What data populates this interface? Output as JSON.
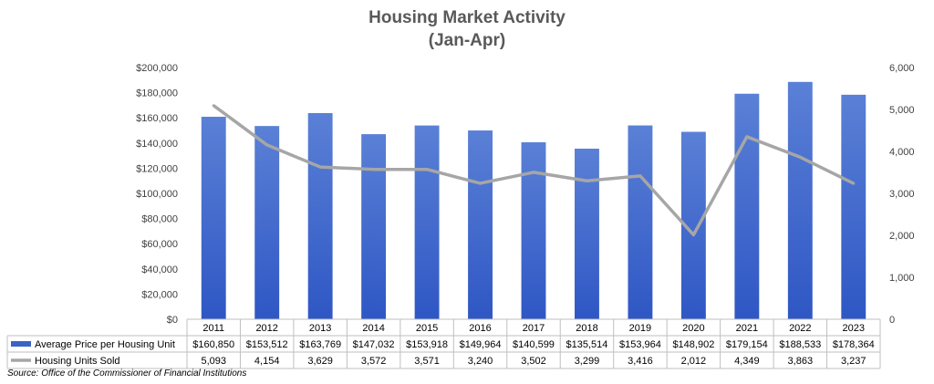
{
  "chart_data": {
    "type": "bar",
    "title": "Housing Market Activity",
    "subtitle": "(Jan-Apr)",
    "categories": [
      "2011",
      "2012",
      "2013",
      "2014",
      "2015",
      "2016",
      "2017",
      "2018",
      "2019",
      "2020",
      "2021",
      "2022",
      "2023"
    ],
    "series": [
      {
        "name": "Average Price per Housing Unit",
        "type": "bar",
        "axis": "left",
        "color": "#3a63c8",
        "values": [
          160850,
          153512,
          163769,
          147032,
          153918,
          149964,
          140599,
          135514,
          153964,
          148902,
          179154,
          188533,
          178364
        ],
        "labels": [
          "$160,850",
          "$153,512",
          "$163,769",
          "$147,032",
          "$153,918",
          "$149,964",
          "$140,599",
          "$135,514",
          "$153,964",
          "$148,902",
          "$179,154",
          "$188,533",
          "$178,364"
        ]
      },
      {
        "name": "Housing Units Sold",
        "type": "line",
        "axis": "right",
        "color": "#a6a6a6",
        "values": [
          5093,
          4154,
          3629,
          3572,
          3571,
          3240,
          3502,
          3299,
          3416,
          2012,
          4349,
          3863,
          3237
        ],
        "labels": [
          "5,093",
          "4,154",
          "3,629",
          "3,572",
          "3,571",
          "3,240",
          "3,502",
          "3,299",
          "3,416",
          "2,012",
          "4,349",
          "3,863",
          "3,237"
        ]
      }
    ],
    "left_axis": {
      "ylim": [
        0,
        200000
      ],
      "ticks": [
        0,
        20000,
        40000,
        60000,
        80000,
        100000,
        120000,
        140000,
        160000,
        180000,
        200000
      ],
      "tick_labels": [
        "$0",
        "$20,000",
        "$40,000",
        "$60,000",
        "$80,000",
        "$100,000",
        "$120,000",
        "$140,000",
        "$160,000",
        "$180,000",
        "$200,000"
      ]
    },
    "right_axis": {
      "ylim": [
        0,
        6000
      ],
      "ticks": [
        0,
        1000,
        2000,
        3000,
        4000,
        5000,
        6000
      ],
      "tick_labels": [
        "0",
        "1,000",
        "2,000",
        "3,000",
        "4,000",
        "5,000",
        "6,000"
      ]
    },
    "grid": false,
    "legend": "data-table-below"
  },
  "source": "Source: Office of the Commissioner of Financial Institutions"
}
